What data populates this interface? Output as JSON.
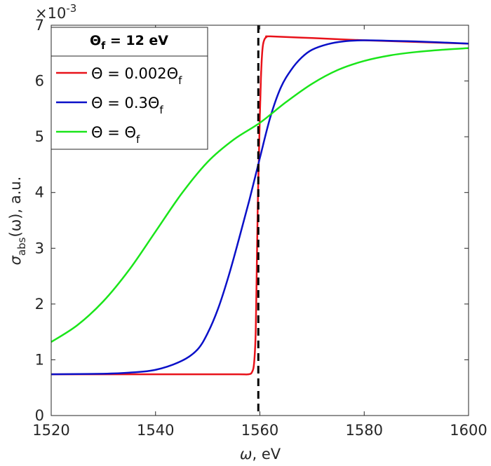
{
  "chart_data": {
    "type": "line",
    "xlabel": {
      "main": "ω",
      "suffix": ", eV"
    },
    "ylabel": {
      "main": "σ",
      "sub": "abs",
      "suffix": "(ω), a.u."
    },
    "y_exponent": {
      "base": "×10",
      "power": "-3"
    },
    "xlim": [
      1520,
      1600
    ],
    "ylim": [
      0,
      7
    ],
    "x_ticks": [
      1520,
      1540,
      1560,
      1580,
      1600
    ],
    "y_ticks": [
      0,
      1,
      2,
      3,
      4,
      5,
      6,
      7
    ],
    "grid": false,
    "vline": {
      "x": 1559.7,
      "style": "dashed",
      "color": "#000000"
    },
    "legend": {
      "position": "top-left",
      "title": {
        "main": "Θ",
        "sub": "f",
        "rest": " = 12 eV"
      }
    },
    "series": [
      {
        "name": "Θ = 0.002Θ_f",
        "label": {
          "main": "Θ = 0.002Θ",
          "sub": "f"
        },
        "color": "#e8121a",
        "x": [
          1520,
          1530,
          1540,
          1550,
          1556,
          1557.8,
          1558.5,
          1558.9,
          1559.2,
          1559.4,
          1559.6,
          1559.8,
          1560.0,
          1560.2,
          1560.4,
          1560.6,
          1560.9,
          1561.3,
          1562,
          1570,
          1580,
          1590,
          1600
        ],
        "y": [
          0.74,
          0.74,
          0.74,
          0.74,
          0.74,
          0.74,
          0.78,
          0.95,
          1.5,
          2.6,
          3.8,
          4.6,
          5.4,
          6.05,
          6.45,
          6.65,
          6.75,
          6.79,
          6.8,
          6.77,
          6.73,
          6.7,
          6.67
        ]
      },
      {
        "name": "Θ = 0.3Θ_f",
        "label": {
          "main": "Θ = 0.3Θ",
          "sub": "f"
        },
        "color": "#0a10c8",
        "x": [
          1520,
          1530,
          1535,
          1540,
          1545,
          1548,
          1550,
          1552,
          1554,
          1556,
          1558,
          1560,
          1562,
          1564,
          1566,
          1568,
          1570,
          1573,
          1576,
          1580,
          1585,
          1590,
          1600
        ],
        "y": [
          0.74,
          0.75,
          0.77,
          0.82,
          0.98,
          1.18,
          1.48,
          1.92,
          2.5,
          3.17,
          3.87,
          4.62,
          5.35,
          5.88,
          6.2,
          6.42,
          6.56,
          6.66,
          6.71,
          6.73,
          6.72,
          6.71,
          6.67
        ]
      },
      {
        "name": "Θ = Θ_f",
        "label": {
          "main": "Θ = Θ",
          "sub": "f"
        },
        "color": "#1ae51a",
        "x": [
          1520,
          1525,
          1530,
          1535,
          1540,
          1545,
          1550,
          1555,
          1560,
          1565,
          1570,
          1575,
          1580,
          1585,
          1590,
          1595,
          1600
        ],
        "y": [
          1.32,
          1.62,
          2.05,
          2.62,
          3.3,
          3.98,
          4.55,
          4.95,
          5.25,
          5.62,
          5.95,
          6.2,
          6.36,
          6.46,
          6.52,
          6.56,
          6.59
        ]
      }
    ]
  }
}
